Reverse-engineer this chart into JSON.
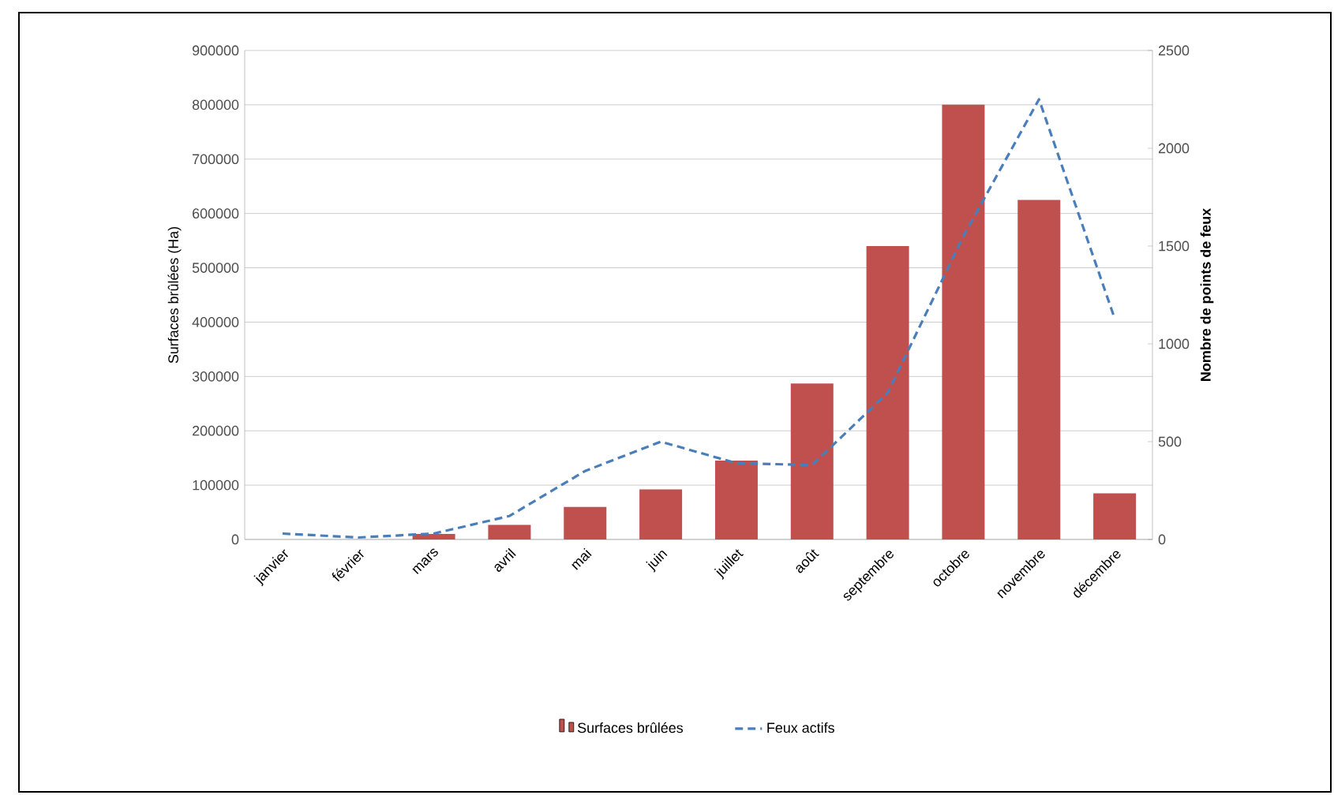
{
  "chart_data": {
    "type": "bar",
    "categories": [
      "janvier",
      "février",
      "mars",
      "avril",
      "mai",
      "juin",
      "juillet",
      "août",
      "septembre",
      "octobre",
      "novembre",
      "décembre"
    ],
    "series": [
      {
        "name": "Surfaces brûlées",
        "color": "#c0504d",
        "values": [
          0,
          0,
          10000,
          27000,
          60000,
          92000,
          145000,
          287000,
          540000,
          800000,
          625000,
          85000
        ]
      },
      {
        "name": "Feux actifs",
        "type": "line",
        "axis": "y2",
        "color": "#4a7ebb",
        "line_style": "dashed",
        "values": [
          30,
          10,
          30,
          120,
          350,
          500,
          390,
          380,
          750,
          1550,
          2250,
          1130
        ]
      }
    ],
    "ylabel": "Surfaces brûlées (Ha)",
    "y2label": "Nombre de points de feux",
    "ylim": [
      0,
      900000
    ],
    "yticks": [
      0,
      100000,
      200000,
      300000,
      400000,
      500000,
      600000,
      700000,
      800000,
      900000
    ],
    "y2lim": [
      0,
      2500
    ],
    "y2ticks": [
      0,
      500,
      1000,
      1500,
      2000,
      2500
    ],
    "grid": "y",
    "legend": "bottom"
  }
}
